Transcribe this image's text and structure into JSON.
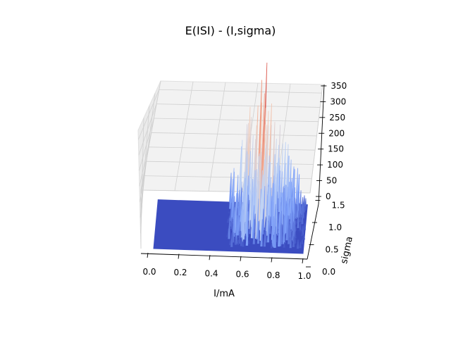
{
  "chart_data": {
    "type": "surface3d",
    "title": "E(ISI) - (I,sigma)",
    "xlabel": "I/mA",
    "ylabel": "sigma",
    "zlabel": "",
    "xlim": [
      0.0,
      1.0
    ],
    "ylim": [
      0.0,
      2.0
    ],
    "zlim": [
      0,
      380
    ],
    "x_ticks": [
      "0.0",
      "0.2",
      "0.4",
      "0.6",
      "0.8",
      "1.0"
    ],
    "y_ticks": [
      "0.0",
      "0.5",
      "1.0",
      "1.5"
    ],
    "z_ticks": [
      "0",
      "50",
      "100",
      "150",
      "200",
      "250",
      "300",
      "350"
    ],
    "colormap": "coolwarm",
    "grid": true,
    "surface": {
      "flat_value": 0,
      "spike_onset_I": 0.48,
      "peaks": [
        {
          "I": 0.55,
          "sigma": 1.5,
          "value": 180
        },
        {
          "I": 0.6,
          "sigma": 1.8,
          "value": 260
        },
        {
          "I": 0.65,
          "sigma": 1.6,
          "value": 330
        },
        {
          "I": 0.7,
          "sigma": 1.7,
          "value": 360
        },
        {
          "I": 0.72,
          "sigma": 1.3,
          "value": 300
        },
        {
          "I": 0.75,
          "sigma": 1.9,
          "value": 250
        },
        {
          "I": 0.8,
          "sigma": 1.5,
          "value": 220
        },
        {
          "I": 0.85,
          "sigma": 1.8,
          "value": 170
        },
        {
          "I": 0.9,
          "sigma": 1.2,
          "value": 120
        }
      ]
    }
  }
}
